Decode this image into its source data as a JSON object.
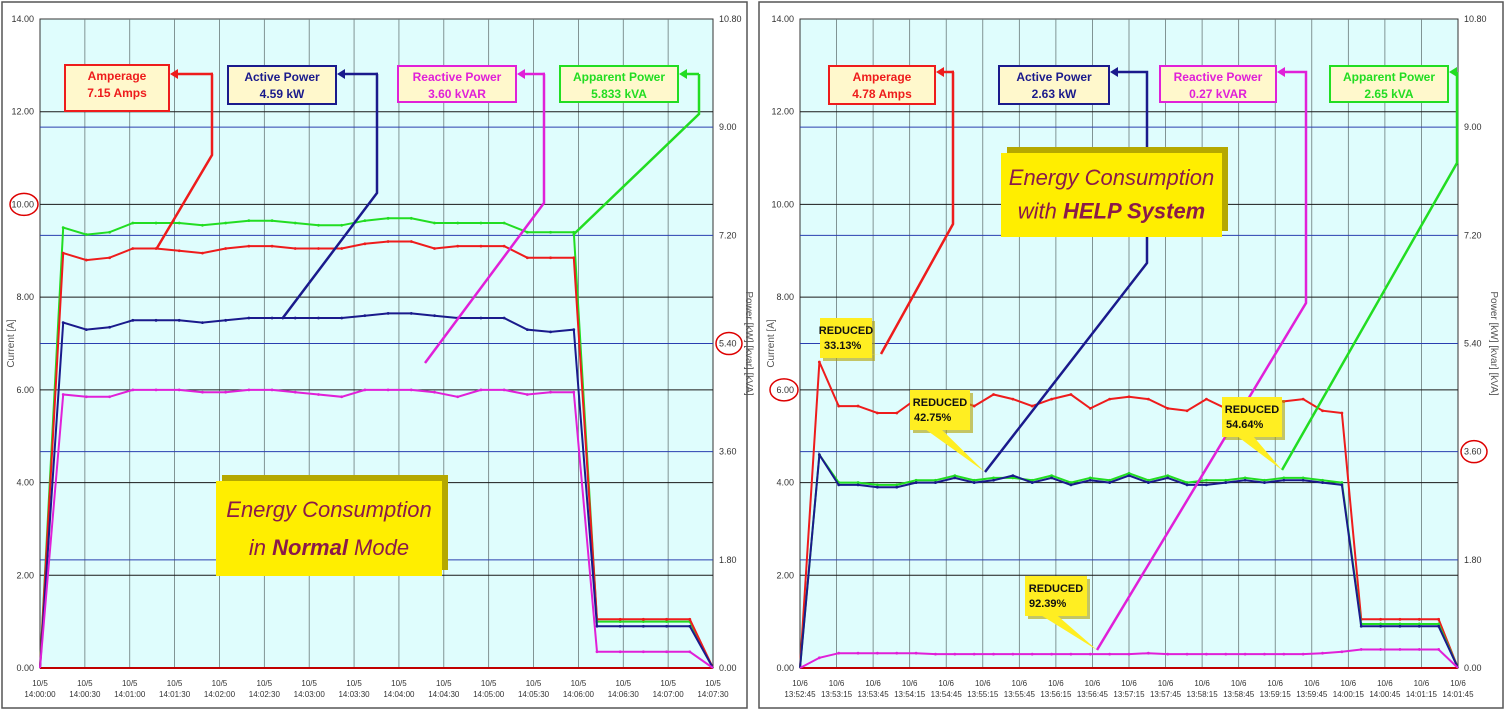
{
  "colors": {
    "amperage": "#ee1c1c",
    "active": "#1a1a8c",
    "reactive": "#e020d8",
    "apparent": "#22dd22",
    "plot_bg": "#dffdfd",
    "grid_major": "#1a1a1a",
    "grid_minor": "#2a3fb0",
    "grid_vertical": "#6a7a7a",
    "box_bg": "#fff8cc",
    "banner_bg": "#ffee00",
    "banner_text": "#8a1a4a",
    "callout_bg": "#ffee22",
    "highlight_circle": "#dd0000"
  },
  "chart_data": [
    {
      "type": "line",
      "title": "Energy Consumption in Normal Mode",
      "banner": {
        "line1": "Energy Consumption",
        "line2_pre": "in ",
        "line2_bold": "Normal",
        "line2_post": " Mode"
      },
      "ylabel_left": "Current [A]",
      "ylabel_right": "Power [kW] [kvar] [kVA]",
      "ylim_left": [
        0,
        14
      ],
      "ylim_right": [
        0,
        10.8
      ],
      "left_ticks": [
        "0.00",
        "2.00",
        "4.00",
        "6.00",
        "8.00",
        "10.00",
        "12.00",
        "14.00"
      ],
      "right_ticks": [
        "0.00",
        "1.80",
        "3.60",
        "5.40",
        "7.20",
        "9.00",
        "10.80"
      ],
      "x_ticks": [
        [
          "10/5",
          "14:00:00"
        ],
        [
          "10/5",
          "14:00:30"
        ],
        [
          "10/5",
          "14:01:00"
        ],
        [
          "10/5",
          "14:01:30"
        ],
        [
          "10/5",
          "14:02:00"
        ],
        [
          "10/5",
          "14:02:30"
        ],
        [
          "10/5",
          "14:03:00"
        ],
        [
          "10/5",
          "14:03:30"
        ],
        [
          "10/5",
          "14:04:00"
        ],
        [
          "10/5",
          "14:04:30"
        ],
        [
          "10/5",
          "14:05:00"
        ],
        [
          "10/5",
          "14:05:30"
        ],
        [
          "10/5",
          "14:06:00"
        ],
        [
          "10/5",
          "14:06:30"
        ],
        [
          "10/5",
          "14:07:00"
        ],
        [
          "10/5",
          "14:07:30"
        ]
      ],
      "boxes": [
        {
          "key": "amperage",
          "label": "Amperage",
          "value": "7.15 Amps"
        },
        {
          "key": "active",
          "label": "Active Power",
          "value": "4.59 kW"
        },
        {
          "key": "reactive",
          "label": "Reactive Power",
          "value": "3.60 kVAR"
        },
        {
          "key": "apparent",
          "label": "Apparent Power",
          "value": "5.833 kVA"
        }
      ],
      "highlighted_ticks": {
        "left": "10.00",
        "right": "5.40"
      },
      "series": [
        {
          "key": "apparent",
          "values": [
            0,
            9.5,
            9.35,
            9.4,
            9.6,
            9.6,
            9.6,
            9.55,
            9.6,
            9.65,
            9.65,
            9.6,
            9.55,
            9.55,
            9.65,
            9.7,
            9.7,
            9.6,
            9.6,
            9.6,
            9.6,
            9.4,
            9.4,
            9.4,
            1.0,
            1.0,
            1.0,
            1.0,
            1.0,
            0
          ]
        },
        {
          "key": "amperage",
          "values": [
            0,
            8.95,
            8.8,
            8.85,
            9.05,
            9.05,
            9.0,
            8.95,
            9.05,
            9.1,
            9.1,
            9.05,
            9.05,
            9.05,
            9.15,
            9.2,
            9.2,
            9.05,
            9.1,
            9.1,
            9.1,
            8.85,
            8.85,
            8.85,
            1.05,
            1.05,
            1.05,
            1.05,
            1.05,
            0
          ]
        },
        {
          "key": "active",
          "values": [
            0,
            7.45,
            7.3,
            7.35,
            7.5,
            7.5,
            7.5,
            7.45,
            7.5,
            7.55,
            7.55,
            7.55,
            7.55,
            7.55,
            7.6,
            7.65,
            7.65,
            7.6,
            7.55,
            7.55,
            7.55,
            7.3,
            7.25,
            7.3,
            0.9,
            0.9,
            0.9,
            0.9,
            0.9,
            0
          ]
        },
        {
          "key": "reactive",
          "values": [
            0,
            5.9,
            5.85,
            5.85,
            6.0,
            6.0,
            6.0,
            5.95,
            5.95,
            6.0,
            6.0,
            5.95,
            5.9,
            5.85,
            6.0,
            6.0,
            6.0,
            5.95,
            5.85,
            6.0,
            6.0,
            5.9,
            5.95,
            5.95,
            0.35,
            0.35,
            0.35,
            0.35,
            0.35,
            0
          ]
        }
      ]
    },
    {
      "type": "line",
      "title": "Energy Consumption with HELP System",
      "banner": {
        "line1": "Energy Consumption",
        "line2_pre": "with ",
        "line2_bold": "HELP System",
        "line2_post": ""
      },
      "ylabel_left": "Current [A]",
      "ylabel_right": "Power [kW] [kvar] [kVA]",
      "ylim_left": [
        0,
        14
      ],
      "ylim_right": [
        0,
        10.8
      ],
      "left_ticks": [
        "0.00",
        "2.00",
        "4.00",
        "6.00",
        "8.00",
        "10.00",
        "12.00",
        "14.00"
      ],
      "right_ticks": [
        "0.00",
        "1.80",
        "3.60",
        "5.40",
        "7.20",
        "9.00",
        "10.80"
      ],
      "x_ticks": [
        [
          "10/6",
          "13:52:45"
        ],
        [
          "10/6",
          "13:53:15"
        ],
        [
          "10/6",
          "13:53:45"
        ],
        [
          "10/6",
          "13:54:15"
        ],
        [
          "10/6",
          "13:54:45"
        ],
        [
          "10/6",
          "13:55:15"
        ],
        [
          "10/6",
          "13:55:45"
        ],
        [
          "10/6",
          "13:56:15"
        ],
        [
          "10/6",
          "13:56:45"
        ],
        [
          "10/6",
          "13:57:15"
        ],
        [
          "10/6",
          "13:57:45"
        ],
        [
          "10/6",
          "13:58:15"
        ],
        [
          "10/6",
          "13:58:45"
        ],
        [
          "10/6",
          "13:59:15"
        ],
        [
          "10/6",
          "13:59:45"
        ],
        [
          "10/6",
          "14:00:15"
        ],
        [
          "10/6",
          "14:00:45"
        ],
        [
          "10/6",
          "14:01:15"
        ],
        [
          "10/6",
          "14:01:45"
        ]
      ],
      "boxes": [
        {
          "key": "amperage",
          "label": "Amperage",
          "value": "4.78 Amps"
        },
        {
          "key": "active",
          "label": "Active Power",
          "value": "2.63 kW"
        },
        {
          "key": "reactive",
          "label": "Reactive Power",
          "value": "0.27 kVAR"
        },
        {
          "key": "apparent",
          "label": "Apparent Power",
          "value": "2.65 kVA"
        }
      ],
      "callouts": [
        {
          "label": "REDUCED",
          "value": "33.13%"
        },
        {
          "label": "REDUCED",
          "value": "42.75%"
        },
        {
          "label": "REDUCED",
          "value": "54.64%"
        },
        {
          "label": "REDUCED",
          "value": "92.39%"
        }
      ],
      "highlighted_ticks": {
        "left": "6.00",
        "right": "3.60"
      },
      "series": [
        {
          "key": "amperage",
          "values": [
            0,
            6.6,
            5.65,
            5.65,
            5.5,
            5.5,
            5.8,
            5.65,
            5.8,
            5.65,
            5.9,
            5.8,
            5.65,
            5.8,
            5.9,
            5.6,
            5.8,
            5.85,
            5.8,
            5.6,
            5.55,
            5.8,
            5.6,
            5.7,
            5.75,
            5.75,
            5.8,
            5.55,
            5.5,
            1.05,
            1.05,
            1.05,
            1.05,
            1.05,
            0
          ]
        },
        {
          "key": "apparent",
          "values": [
            0,
            4.6,
            4.0,
            4.0,
            3.95,
            3.95,
            4.05,
            4.05,
            4.15,
            4.05,
            4.1,
            4.1,
            4.05,
            4.15,
            4.0,
            4.1,
            4.05,
            4.2,
            4.05,
            4.15,
            4.0,
            4.05,
            4.05,
            4.1,
            4.05,
            4.1,
            4.1,
            4.05,
            4.0,
            0.95,
            0.95,
            0.95,
            0.95,
            0.95,
            0
          ]
        },
        {
          "key": "active",
          "values": [
            0,
            4.6,
            3.95,
            3.95,
            3.9,
            3.9,
            4.0,
            4.0,
            4.1,
            4.0,
            4.05,
            4.15,
            4.0,
            4.1,
            3.95,
            4.05,
            4.0,
            4.15,
            4.0,
            4.1,
            3.95,
            3.95,
            4.0,
            4.05,
            4.0,
            4.05,
            4.05,
            4.0,
            3.95,
            0.9,
            0.9,
            0.9,
            0.9,
            0.9,
            0
          ]
        },
        {
          "key": "reactive",
          "values": [
            0,
            0.22,
            0.32,
            0.32,
            0.32,
            0.32,
            0.32,
            0.3,
            0.3,
            0.3,
            0.3,
            0.3,
            0.3,
            0.3,
            0.3,
            0.3,
            0.3,
            0.3,
            0.32,
            0.3,
            0.3,
            0.3,
            0.3,
            0.3,
            0.3,
            0.3,
            0.3,
            0.32,
            0.35,
            0.4,
            0.4,
            0.4,
            0.4,
            0.4,
            0
          ]
        }
      ]
    }
  ]
}
